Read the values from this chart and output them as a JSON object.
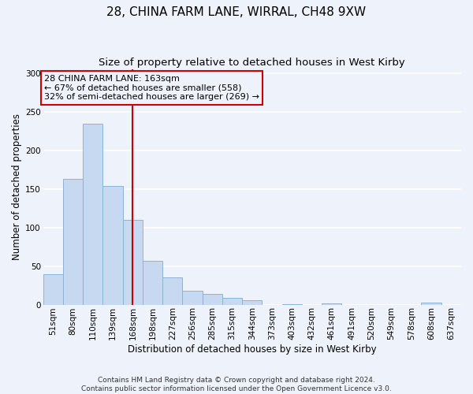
{
  "title": "28, CHINA FARM LANE, WIRRAL, CH48 9XW",
  "subtitle": "Size of property relative to detached houses in West Kirby",
  "xlabel": "Distribution of detached houses by size in West Kirby",
  "ylabel": "Number of detached properties",
  "bar_labels": [
    "51sqm",
    "80sqm",
    "110sqm",
    "139sqm",
    "168sqm",
    "198sqm",
    "227sqm",
    "256sqm",
    "285sqm",
    "315sqm",
    "344sqm",
    "373sqm",
    "403sqm",
    "432sqm",
    "461sqm",
    "491sqm",
    "520sqm",
    "549sqm",
    "578sqm",
    "608sqm",
    "637sqm"
  ],
  "bar_values": [
    39,
    163,
    235,
    154,
    110,
    57,
    35,
    18,
    14,
    9,
    6,
    0,
    1,
    0,
    2,
    0,
    0,
    0,
    0,
    3,
    0
  ],
  "bar_color": "#c6d9f0",
  "bar_edge_color": "#8ab4d8",
  "vline_x": 4,
  "vline_color": "#cc0000",
  "annotation_title": "28 CHINA FARM LANE: 163sqm",
  "annotation_line1": "← 67% of detached houses are smaller (558)",
  "annotation_line2": "32% of semi-detached houses are larger (269) →",
  "annotation_box_color": "#cc0000",
  "ylim": [
    0,
    305
  ],
  "yticks": [
    0,
    50,
    100,
    150,
    200,
    250,
    300
  ],
  "footer1": "Contains HM Land Registry data © Crown copyright and database right 2024.",
  "footer2": "Contains public sector information licensed under the Open Government Licence v3.0.",
  "bg_color": "#eef2fb",
  "grid_color": "#ffffff",
  "title_fontsize": 11,
  "subtitle_fontsize": 9.5,
  "axis_label_fontsize": 8.5,
  "tick_fontsize": 7.5,
  "footer_fontsize": 6.5
}
